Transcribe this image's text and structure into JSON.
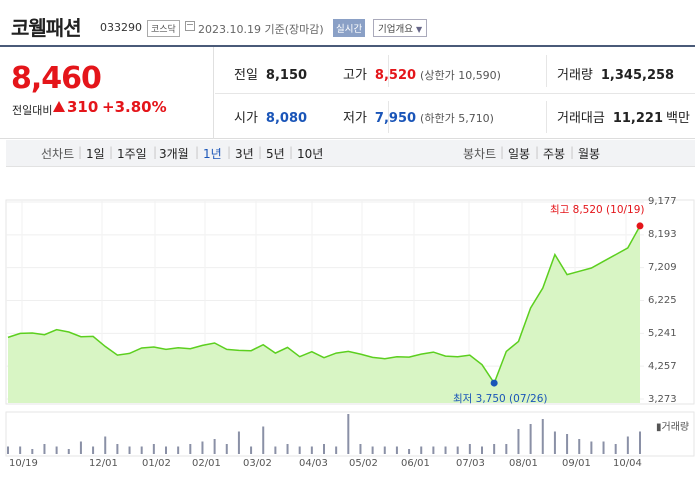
{
  "header": {
    "name": "코웰패션",
    "code": "033290",
    "market": "코스닥",
    "date": "2023.10.19 기준(장마감)",
    "realtime": "실시간",
    "company_button": "기업개요"
  },
  "quote": {
    "price": "8,460",
    "change_label": "전일대비",
    "change": "310",
    "change_pct": "+3.80%",
    "prev_close_label": "전일",
    "prev_close": "8,150",
    "high_label": "고가",
    "high": "8,520",
    "upper_limit": "(상한가 10,590)",
    "volume_label": "거래량",
    "volume": "1,345,258",
    "open_label": "시가",
    "open": "8,080",
    "low_label": "저가",
    "low": "7,950",
    "lower_limit": "(하한가 5,710)",
    "amount_label": "거래대금",
    "amount": "11,221",
    "amount_unit": "백만"
  },
  "tabs": {
    "line_caption": "선차트",
    "line_options": [
      "1일",
      "1주일",
      "3개월",
      "1년",
      "3년",
      "5년",
      "10년"
    ],
    "selected": "1년",
    "candle_caption": "봉차트",
    "candle_options": [
      "일봉",
      "주봉",
      "월봉"
    ]
  },
  "colors": {
    "up": "#e4151a",
    "down": "#1a55b8",
    "line": "#5ccf1f",
    "area": "#d8f5c4"
  },
  "chart_data": {
    "type": "area",
    "y_ticks": [
      "9,177",
      "8,193",
      "7,209",
      "6,225",
      "5,241",
      "4,257",
      "3,273"
    ],
    "ylim": [
      3273,
      9177
    ],
    "x_ticks": [
      "10/19",
      "12/01",
      "01/02",
      "02/01",
      "03/02",
      "04/03",
      "05/02",
      "06/01",
      "07/03",
      "08/01",
      "09/01",
      "10/04"
    ],
    "x": [
      "10/19",
      "10/26",
      "11/02",
      "11/09",
      "11/16",
      "11/23",
      "11/30",
      "12/07",
      "12/14",
      "12/21",
      "12/28",
      "01/04",
      "01/11",
      "01/18",
      "01/25",
      "02/01",
      "02/08",
      "02/15",
      "02/22",
      "03/02",
      "03/09",
      "03/16",
      "03/23",
      "03/30",
      "04/06",
      "04/13",
      "04/20",
      "04/27",
      "05/04",
      "05/11",
      "05/18",
      "05/25",
      "06/01",
      "06/08",
      "06/15",
      "06/22",
      "06/29",
      "07/06",
      "07/13",
      "07/20",
      "07/26",
      "08/02",
      "08/09",
      "08/16",
      "08/23",
      "08/30",
      "09/06",
      "09/13",
      "09/20",
      "09/27",
      "10/04",
      "10/11",
      "10/19"
    ],
    "values": [
      5120,
      5240,
      5250,
      5200,
      5350,
      5280,
      5140,
      5150,
      4850,
      4590,
      4640,
      4800,
      4830,
      4760,
      4810,
      4780,
      4880,
      4950,
      4760,
      4730,
      4720,
      4900,
      4650,
      4820,
      4540,
      4690,
      4510,
      4650,
      4700,
      4620,
      4520,
      4480,
      4540,
      4530,
      4620,
      4680,
      4560,
      4540,
      4590,
      4300,
      3750,
      4700,
      5000,
      6000,
      6600,
      7600,
      7000,
      7100,
      7200,
      7400,
      7600,
      7800,
      8460
    ],
    "volume": [
      3,
      3,
      2,
      4,
      3,
      2,
      5,
      3,
      7,
      4,
      3,
      3,
      4,
      3,
      3,
      4,
      5,
      6,
      4,
      9,
      3,
      11,
      3,
      4,
      3,
      3,
      4,
      3,
      16,
      4,
      3,
      3,
      3,
      2,
      3,
      3,
      3,
      3,
      4,
      3,
      4,
      4,
      10,
      12,
      14,
      9,
      8,
      6,
      5,
      5,
      4,
      7,
      9
    ],
    "max_label": "최고 8,520 (10/19)",
    "min_label": "최저 3,750 (07/26)",
    "volume_label": "거래량",
    "grid": true
  }
}
